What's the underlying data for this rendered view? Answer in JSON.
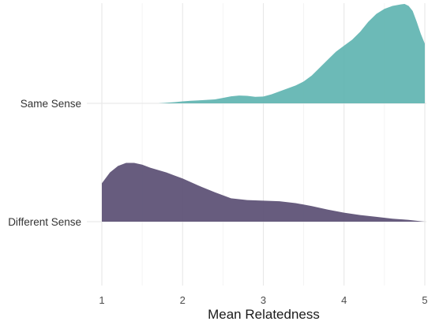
{
  "chart_data": {
    "type": "area",
    "xlabel": "Mean Relatedness",
    "ylabel": "",
    "xlim": [
      1,
      5
    ],
    "x_ticks": [
      1,
      2,
      3,
      4,
      5
    ],
    "grid": true,
    "legend": "none",
    "categories": [
      "Different Sense",
      "Same Sense"
    ],
    "series": [
      {
        "name": "Same Sense",
        "color": "#5fb4b1",
        "x": [
          1.7,
          1.8,
          1.9,
          2.0,
          2.1,
          2.2,
          2.3,
          2.4,
          2.5,
          2.6,
          2.7,
          2.8,
          2.9,
          3.0,
          3.1,
          3.2,
          3.3,
          3.4,
          3.5,
          3.6,
          3.7,
          3.8,
          3.9,
          4.0,
          4.1,
          4.2,
          4.3,
          4.4,
          4.5,
          4.6,
          4.7,
          4.75,
          4.8,
          4.85,
          4.9,
          4.95,
          5.0
        ],
        "density": [
          0.0,
          0.006,
          0.012,
          0.02,
          0.026,
          0.03,
          0.035,
          0.04,
          0.055,
          0.07,
          0.078,
          0.075,
          0.065,
          0.068,
          0.09,
          0.12,
          0.15,
          0.18,
          0.22,
          0.28,
          0.36,
          0.44,
          0.52,
          0.58,
          0.64,
          0.72,
          0.82,
          0.9,
          0.95,
          0.98,
          0.995,
          1.0,
          0.98,
          0.93,
          0.82,
          0.7,
          0.6
        ]
      },
      {
        "name": "Different Sense",
        "color": "#5a4e73",
        "x": [
          1.0,
          1.1,
          1.2,
          1.3,
          1.4,
          1.5,
          1.6,
          1.7,
          1.8,
          1.9,
          2.0,
          2.2,
          2.4,
          2.6,
          2.8,
          3.0,
          3.2,
          3.4,
          3.6,
          3.8,
          4.0,
          4.2,
          4.4,
          4.6,
          4.8,
          5.0
        ],
        "density": [
          0.64,
          0.82,
          0.93,
          0.98,
          0.98,
          0.95,
          0.9,
          0.86,
          0.82,
          0.77,
          0.72,
          0.6,
          0.49,
          0.39,
          0.36,
          0.35,
          0.34,
          0.31,
          0.26,
          0.2,
          0.15,
          0.11,
          0.08,
          0.05,
          0.03,
          0.0
        ]
      }
    ]
  }
}
